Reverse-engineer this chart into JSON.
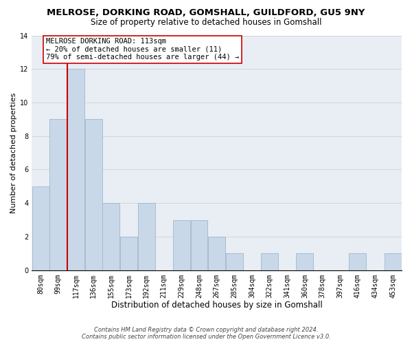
{
  "title": "MELROSE, DORKING ROAD, GOMSHALL, GUILDFORD, GU5 9NY",
  "subtitle": "Size of property relative to detached houses in Gomshall",
  "xlabel": "Distribution of detached houses by size in Gomshall",
  "ylabel": "Number of detached properties",
  "bins": [
    "80sqm",
    "99sqm",
    "117sqm",
    "136sqm",
    "155sqm",
    "173sqm",
    "192sqm",
    "211sqm",
    "229sqm",
    "248sqm",
    "267sqm",
    "285sqm",
    "304sqm",
    "322sqm",
    "341sqm",
    "360sqm",
    "378sqm",
    "397sqm",
    "416sqm",
    "434sqm",
    "453sqm"
  ],
  "values": [
    5,
    9,
    12,
    9,
    4,
    2,
    4,
    0,
    3,
    3,
    2,
    1,
    0,
    1,
    0,
    1,
    0,
    0,
    1,
    0,
    1
  ],
  "bar_color": "#c8d8e8",
  "bar_edge_color": "#a0b8cc",
  "property_line_color": "#cc0000",
  "property_line_bin_index": 2,
  "annotation_line1": "MELROSE DORKING ROAD: 113sqm",
  "annotation_line2": "← 20% of detached houses are smaller (11)",
  "annotation_line3": "79% of semi-detached houses are larger (44) →",
  "annotation_box_edge_color": "#cc0000",
  "ylim": [
    0,
    14
  ],
  "yticks": [
    0,
    2,
    4,
    6,
    8,
    10,
    12,
    14
  ],
  "plot_bg_color": "#e8eef4",
  "footnote": "Contains HM Land Registry data © Crown copyright and database right 2024.\nContains public sector information licensed under the Open Government Licence v3.0.",
  "title_fontsize": 9.5,
  "subtitle_fontsize": 8.5,
  "xlabel_fontsize": 8.5,
  "ylabel_fontsize": 8,
  "tick_fontsize": 7,
  "annotation_fontsize": 7.5,
  "footnote_fontsize": 6
}
